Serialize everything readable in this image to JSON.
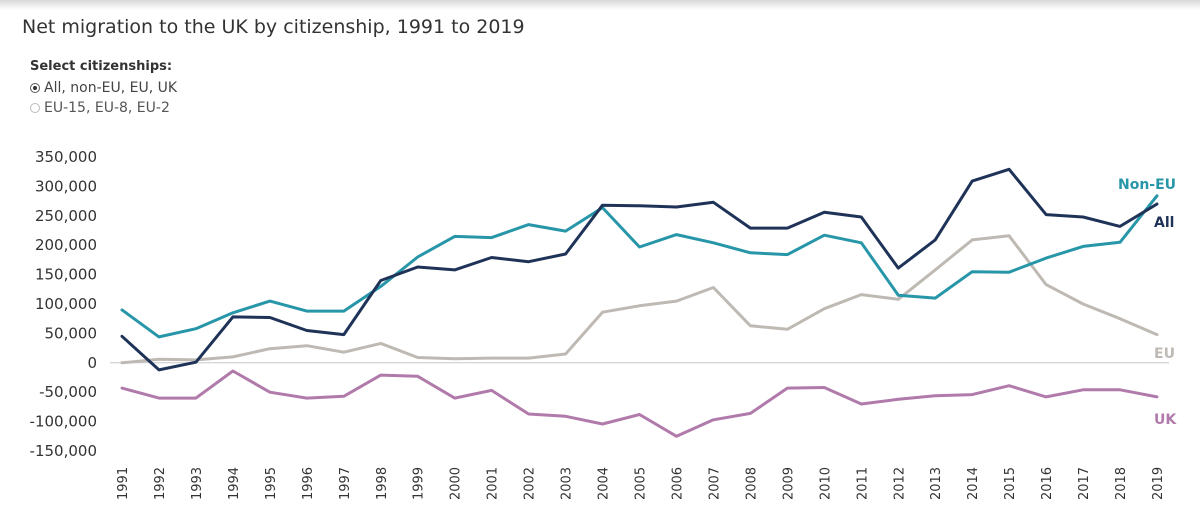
{
  "title": "Net migration to the UK by citizenship, 1991 to 2019",
  "selector": {
    "heading": "Select citizenships:",
    "options": [
      {
        "label": "All, non-EU, EU, UK",
        "selected": true
      },
      {
        "label": "EU-15, EU-8, EU-2",
        "selected": false
      }
    ]
  },
  "chart_data": {
    "type": "line",
    "title": "Net migration to the UK by citizenship, 1991 to 2019",
    "xlabel": "",
    "ylabel": "",
    "x": [
      1991,
      1992,
      1993,
      1994,
      1995,
      1996,
      1997,
      1998,
      1999,
      2000,
      2001,
      2002,
      2003,
      2004,
      2005,
      2006,
      2007,
      2008,
      2009,
      2010,
      2011,
      2012,
      2013,
      2014,
      2015,
      2016,
      2017,
      2018,
      2019
    ],
    "x_tick_labels": [
      "1991",
      "1992",
      "1993",
      "1994",
      "1995",
      "1996",
      "1997",
      "1998",
      "1999",
      "2000",
      "2001",
      "2002",
      "2003",
      "2004",
      "2005",
      "2006",
      "2007",
      "2008",
      "2009",
      "2010",
      "2011",
      "2012",
      "2013",
      "2014",
      "2015",
      "2016",
      "2017",
      "2018",
      "2019"
    ],
    "ylim": [
      -150000,
      350000
    ],
    "y_ticks": [
      -150000,
      -100000,
      -50000,
      0,
      50000,
      100000,
      150000,
      200000,
      250000,
      300000,
      350000
    ],
    "y_tick_labels": [
      "-150,000",
      "-100,000",
      "-50,000",
      "0",
      "50,000",
      "100,000",
      "150,000",
      "200,000",
      "250,000",
      "300,000",
      "350,000"
    ],
    "grid": false,
    "zero_line": true,
    "legend": "inline labels at line ends",
    "series": [
      {
        "name": "All",
        "color": "#1f3358",
        "values": [
          45000,
          -12000,
          1000,
          78000,
          77000,
          55000,
          48000,
          140000,
          163000,
          158000,
          179000,
          172000,
          185000,
          268000,
          267000,
          265000,
          273000,
          229000,
          229000,
          256000,
          248000,
          161000,
          209000,
          309000,
          329000,
          252000,
          248000,
          232000,
          270000
        ]
      },
      {
        "name": "Non-EU",
        "color": "#2796a8",
        "values": [
          90000,
          44000,
          58000,
          85000,
          105000,
          88000,
          88000,
          130000,
          180000,
          215000,
          213000,
          235000,
          224000,
          264000,
          197000,
          218000,
          204000,
          187000,
          184000,
          217000,
          204000,
          115000,
          110000,
          155000,
          154000,
          178000,
          198000,
          205000,
          284000
        ]
      },
      {
        "name": "EU",
        "color": "#bfb9b4",
        "values": [
          0,
          6000,
          5000,
          10000,
          24000,
          29000,
          18000,
          33000,
          9000,
          7000,
          8000,
          8000,
          15000,
          86000,
          97000,
          105000,
          128000,
          63000,
          57000,
          92000,
          116000,
          108000,
          158000,
          209000,
          216000,
          133000,
          100000,
          75000,
          48000
        ]
      },
      {
        "name": "UK",
        "color": "#b07aab",
        "values": [
          -43000,
          -60000,
          -60000,
          -14000,
          -50000,
          -60000,
          -57000,
          -21000,
          -23000,
          -60000,
          -47000,
          -87000,
          -91000,
          -104000,
          -88000,
          -125000,
          -97000,
          -86000,
          -43000,
          -42000,
          -70000,
          -62000,
          -56000,
          -54000,
          -39000,
          -58000,
          -46000,
          -46000,
          -58000
        ]
      }
    ]
  }
}
